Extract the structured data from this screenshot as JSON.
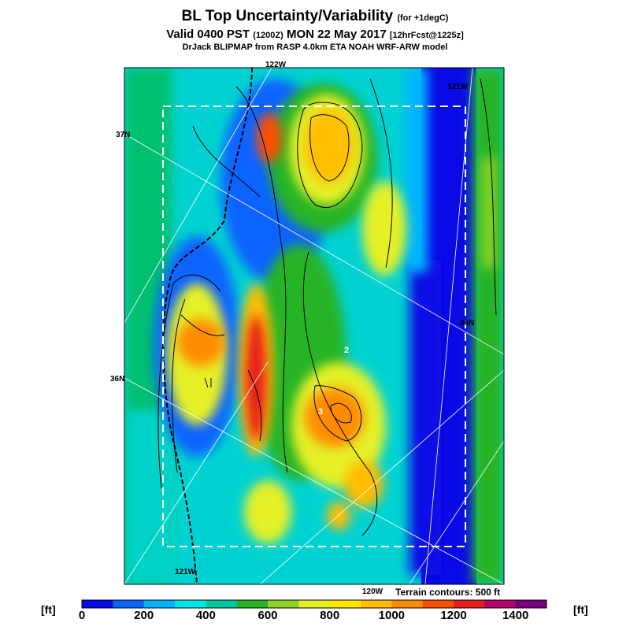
{
  "header": {
    "title_main": "BL Top Uncertainty/Variability",
    "title_note": "(for +1degC)",
    "valid_main": "Valid 0400 PST",
    "valid_utc": "(1200Z)",
    "valid_date": "MON 22 May 2017",
    "valid_fcst": "[12hrFcst@1225z]",
    "source": "DrJack BLIPMAP from RASP 4.0km ETA NOAH WRF-ARW model"
  },
  "map": {
    "grid_labels": {
      "lon_122": "122W",
      "lon_121_top": "121W",
      "lon_121_bottom": "121W",
      "lon_120": "120W",
      "lat_37": "37N",
      "lat_36": "36N",
      "lat_36_right": "36N"
    },
    "point_labels": {
      "p2": "2",
      "p3": "3"
    },
    "terrain_note": "Terrain contours: 500 ft"
  },
  "colorbar": {
    "unit_left": "[ft]",
    "unit_right": "[ft]",
    "ticks": [
      "0",
      "200",
      "400",
      "600",
      "800",
      "1000",
      "1200",
      "1400"
    ],
    "colors": [
      "#0a0ae6",
      "#0a64ff",
      "#00b4ff",
      "#00e6e6",
      "#00c8a0",
      "#28b428",
      "#8cd228",
      "#e6f028",
      "#ffe600",
      "#ffbe00",
      "#ff8c00",
      "#ff5000",
      "#e61e1e",
      "#b4006e",
      "#78007f"
    ]
  }
}
